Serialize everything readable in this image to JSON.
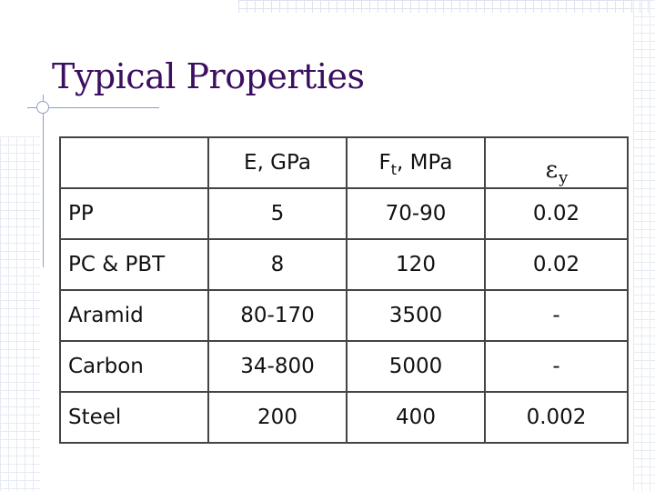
{
  "slide": {
    "title": "Typical Properties"
  },
  "table": {
    "headers": {
      "col0": "",
      "col1": "E, GPa",
      "col2_main": "F",
      "col2_sub": "t",
      "col2_tail": ", MPa",
      "col3_symbol": "ε",
      "col3_sub": "y"
    },
    "rows": [
      {
        "material": "PP",
        "e": "5",
        "ft": "70-90",
        "ey": "0.02"
      },
      {
        "material": "PC & PBT",
        "e": "8",
        "ft": "120",
        "ey": "0.02"
      },
      {
        "material": "Aramid",
        "e": "80-170",
        "ft": "3500",
        "ey": "-"
      },
      {
        "material": "Carbon",
        "e": "34-800",
        "ft": "5000",
        "ey": "-"
      },
      {
        "material": "Steel",
        "e": "200",
        "ft": "400",
        "ey": "0.002"
      }
    ]
  },
  "colors": {
    "title": "#3b1060",
    "rules": "#8f9fc4",
    "table_border": "#444444"
  }
}
